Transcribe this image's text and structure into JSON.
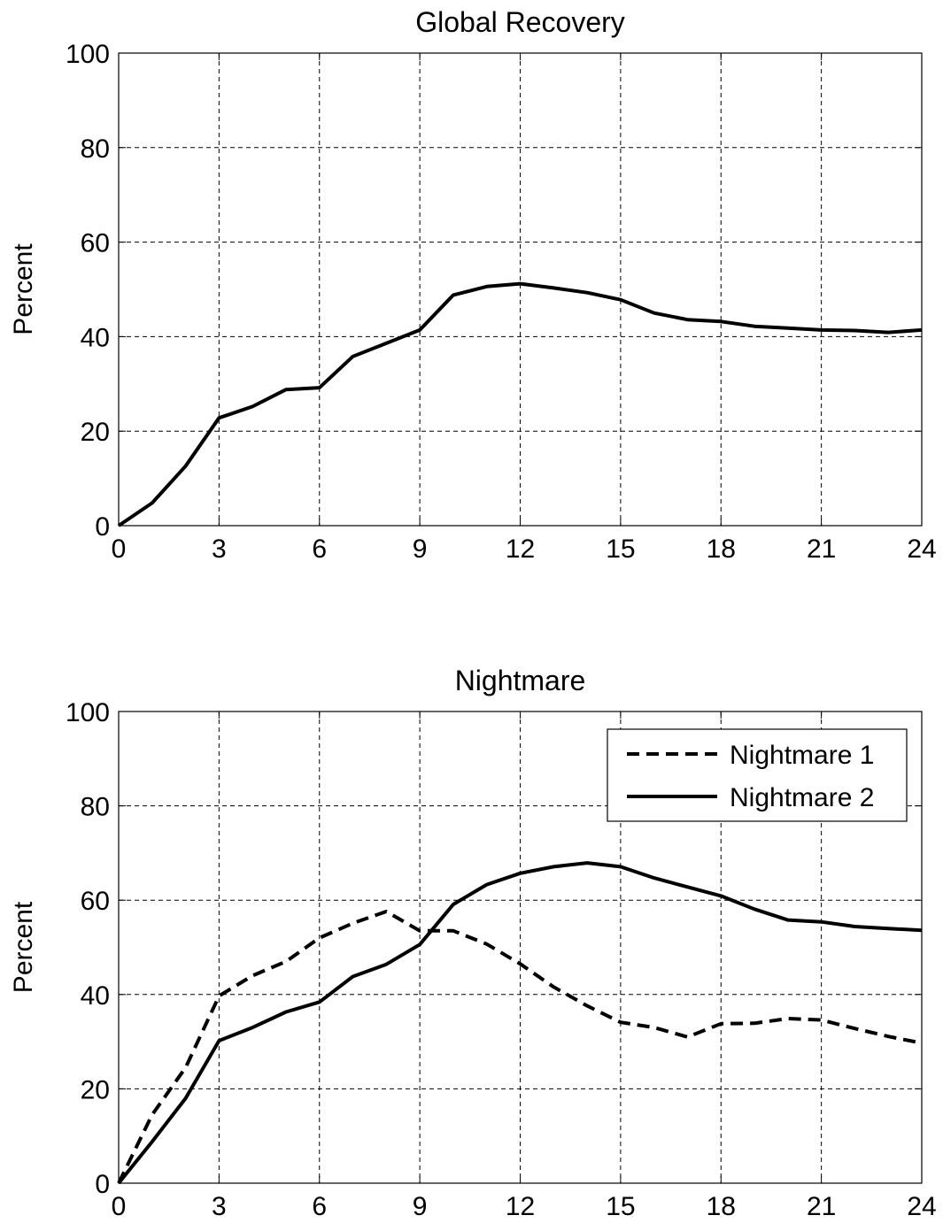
{
  "chart_data": [
    {
      "type": "line",
      "title": "Global Recovery",
      "xlabel": "",
      "ylabel": "Percent",
      "xlim": [
        0,
        24
      ],
      "ylim": [
        0,
        100
      ],
      "xticks": [
        0,
        3,
        6,
        9,
        12,
        15,
        18,
        21,
        24
      ],
      "yticks": [
        0,
        20,
        40,
        60,
        80,
        100
      ],
      "grid": true,
      "legend": null,
      "x": [
        0,
        1,
        2,
        3,
        4,
        5,
        6,
        7,
        8,
        9,
        10,
        11,
        12,
        13,
        14,
        15,
        16,
        17,
        18,
        19,
        20,
        21,
        22,
        23,
        24
      ],
      "series": [
        {
          "style": "solid",
          "color": "#000000",
          "values": [
            0,
            4.8,
            12.6,
            22.8,
            25.2,
            28.8,
            29.2,
            35.8,
            38.6,
            41.4,
            48.8,
            50.6,
            51.2,
            50.3,
            49.3,
            47.8,
            45.0,
            43.6,
            43.2,
            42.2,
            41.8,
            41.4,
            41.3,
            40.9,
            41.4
          ]
        }
      ]
    },
    {
      "type": "line",
      "title": "Nightmare",
      "xlabel": "",
      "ylabel": "Percent",
      "xlim": [
        0,
        24
      ],
      "ylim": [
        0,
        100
      ],
      "xticks": [
        0,
        3,
        6,
        9,
        12,
        15,
        18,
        21,
        24
      ],
      "yticks": [
        0,
        20,
        40,
        60,
        80,
        100
      ],
      "grid": true,
      "legend": "top-right",
      "x": [
        0,
        1,
        2,
        3,
        4,
        5,
        6,
        7,
        8,
        9,
        10,
        11,
        12,
        13,
        14,
        15,
        16,
        17,
        18,
        19,
        20,
        21,
        22,
        23,
        24
      ],
      "series": [
        {
          "name": "Nightmare 1",
          "style": "dashed",
          "color": "#000000",
          "values": [
            0,
            14.5,
            24.5,
            39.7,
            44.0,
            47.0,
            52.0,
            55.1,
            57.6,
            53.5,
            53.5,
            50.7,
            46.5,
            41.6,
            37.6,
            34.1,
            33.0,
            31.0,
            33.8,
            33.9,
            34.9,
            34.6,
            32.8,
            31.1,
            29.7
          ]
        },
        {
          "name": "Nightmare 2",
          "style": "solid",
          "color": "#000000",
          "values": [
            0,
            8.8,
            18.0,
            30.2,
            33.0,
            36.3,
            38.4,
            43.8,
            46.4,
            50.6,
            59.1,
            63.3,
            65.7,
            67.1,
            67.9,
            67.1,
            64.7,
            62.8,
            60.9,
            58.1,
            55.8,
            55.4,
            54.4,
            54.0,
            53.6
          ]
        }
      ]
    }
  ]
}
